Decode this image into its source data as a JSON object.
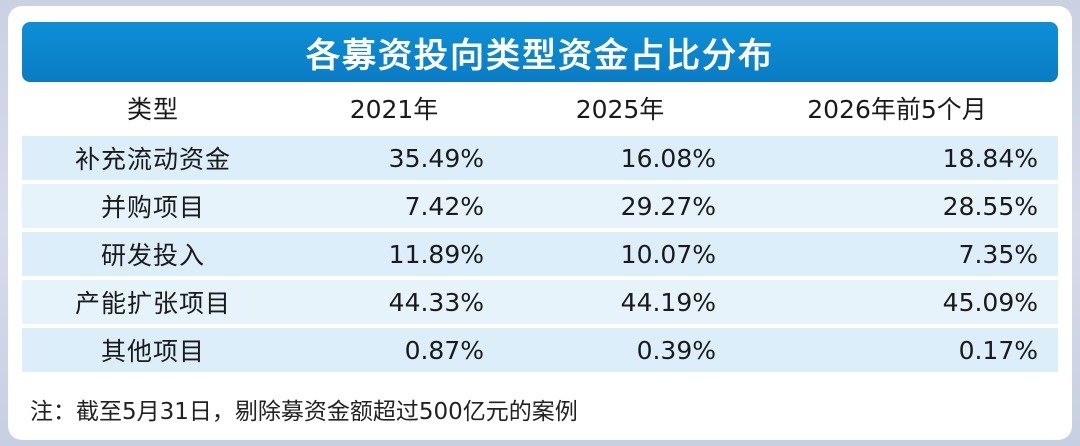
{
  "title": "各募资投向类型资金占比分布",
  "columns": [
    "类型",
    "2021年",
    "2025年",
    "2026年前5个月"
  ],
  "rows": [
    {
      "type": "补充流动资金",
      "v2021": "35.49%",
      "v2025": "16.08%",
      "v2026": "18.84%"
    },
    {
      "type": "并购项目",
      "v2021": "7.42%",
      "v2025": "29.27%",
      "v2026": "28.55%"
    },
    {
      "type": "研发投入",
      "v2021": "11.89%",
      "v2025": "10.07%",
      "v2026": "7.35%"
    },
    {
      "type": "产能扩张项目",
      "v2021": "44.33%",
      "v2025": "44.19%",
      "v2026": "45.09%"
    },
    {
      "type": "其他项目",
      "v2021": "0.87%",
      "v2025": "0.39%",
      "v2026": "0.17%"
    }
  ],
  "note": "注：截至5月31日，剔除募资金额超过500亿元的案例",
  "colors": {
    "title_bg": "#0a7cc4",
    "row_bg": "#dbeef9"
  }
}
